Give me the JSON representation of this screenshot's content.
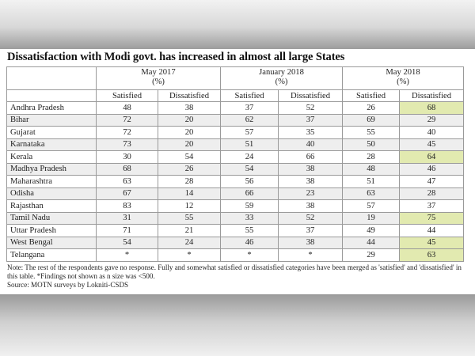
{
  "title": "Dissatisfaction with Modi govt. has increased in almost all large States",
  "periods": [
    {
      "label": "May 2017",
      "unit": "(%)"
    },
    {
      "label": "January 2018",
      "unit": "(%)"
    },
    {
      "label": "May 2018",
      "unit": "(%)"
    }
  ],
  "subheaders": [
    "Satisfied",
    "Dissatisfied",
    "Satisfied",
    "Dissatisfied",
    "Satisfied",
    "Dissatisfied"
  ],
  "rows": [
    {
      "state": "Andhra Pradesh",
      "values": [
        "48",
        "38",
        "37",
        "52",
        "26",
        "68"
      ],
      "highlight_last": true
    },
    {
      "state": "Bihar",
      "values": [
        "72",
        "20",
        "62",
        "37",
        "69",
        "29"
      ],
      "highlight_last": false
    },
    {
      "state": "Gujarat",
      "values": [
        "72",
        "20",
        "57",
        "35",
        "55",
        "40"
      ],
      "highlight_last": false
    },
    {
      "state": "Karnataka",
      "values": [
        "73",
        "20",
        "51",
        "40",
        "50",
        "45"
      ],
      "highlight_last": false
    },
    {
      "state": "Kerala",
      "values": [
        "30",
        "54",
        "24",
        "66",
        "28",
        "64"
      ],
      "highlight_last": true
    },
    {
      "state": "Madhya Pradesh",
      "values": [
        "68",
        "26",
        "54",
        "38",
        "48",
        "46"
      ],
      "highlight_last": false
    },
    {
      "state": "Maharashtra",
      "values": [
        "63",
        "28",
        "56",
        "38",
        "51",
        "47"
      ],
      "highlight_last": false
    },
    {
      "state": "Odisha",
      "values": [
        "67",
        "14",
        "66",
        "23",
        "63",
        "28"
      ],
      "highlight_last": false
    },
    {
      "state": "Rajasthan",
      "values": [
        "83",
        "12",
        "59",
        "38",
        "57",
        "37"
      ],
      "highlight_last": false
    },
    {
      "state": "Tamil Nadu",
      "values": [
        "31",
        "55",
        "33",
        "52",
        "19",
        "75"
      ],
      "highlight_last": true
    },
    {
      "state": "Uttar Pradesh",
      "values": [
        "71",
        "21",
        "55",
        "37",
        "49",
        "44"
      ],
      "highlight_last": false
    },
    {
      "state": "West Bengal",
      "values": [
        "54",
        "24",
        "46",
        "38",
        "44",
        "45"
      ],
      "highlight_last": true
    },
    {
      "state": "Telangana",
      "values": [
        "*",
        "*",
        "*",
        "*",
        "29",
        "63"
      ],
      "highlight_last": true
    }
  ],
  "notes": {
    "note": "Note: The rest of the respondents gave no response.  Fully and somewhat satisfied or dissatisfied categories have been merged as 'satisfied' and 'dissatisfied' in this table. *Findings not shown as n size was <500.",
    "source": "Source: MOTN surveys by Lokniti-CSDS"
  },
  "colors": {
    "highlight": "#e2eab0",
    "alt_row": "#eeeeee",
    "border": "#9a9a9a"
  }
}
